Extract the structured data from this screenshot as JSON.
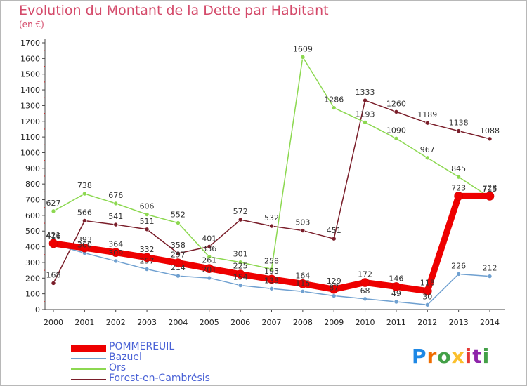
{
  "header": {
    "title": "Evolution du Montant de la Dette par Habitant",
    "unit": "(en €)"
  },
  "logo": {
    "text": "Proxiti",
    "letters": [
      "P",
      "r",
      "o",
      "x",
      "i",
      "t",
      "i"
    ],
    "colors": [
      "#1e88e5",
      "#ef6c00",
      "#43a047",
      "#fbc02d",
      "#e53935",
      "#8e24aa",
      "#43a047"
    ]
  },
  "chart_data": {
    "type": "line",
    "title": "Evolution du Montant de la Dette par Habitant",
    "subtitle": "(en €)",
    "xlabel": "",
    "ylabel": "",
    "x": [
      2000,
      2001,
      2002,
      2003,
      2004,
      2005,
      2006,
      2007,
      2008,
      2009,
      2010,
      2011,
      2012,
      2013,
      2014
    ],
    "ylim": [
      0,
      1700
    ],
    "yticks": [
      0,
      100,
      200,
      300,
      400,
      500,
      600,
      700,
      800,
      900,
      1000,
      1100,
      1200,
      1300,
      1400,
      1500,
      1600,
      1700
    ],
    "grid": false,
    "legend_position": "bottom-left",
    "series": [
      {
        "name": "POMMEREUIL",
        "color": "#ee0000",
        "width": 9,
        "values": [
          421,
          393,
          364,
          332,
          297,
          261,
          225,
          193,
          164,
          129,
          172,
          146,
          118,
          723,
          723
        ]
      },
      {
        "name": "Bazuel",
        "color": "#6fa0d0",
        "width": 1.5,
        "values": [
          416,
          360,
          309,
          257,
          214,
          201,
          154,
          133,
          115,
          87,
          68,
          49,
          30,
          226,
          212
        ]
      },
      {
        "name": "Ors",
        "color": "#8cd850",
        "width": 1.5,
        "values": [
          627,
          738,
          676,
          606,
          552,
          336,
          301,
          258,
          1609,
          1286,
          1193,
          1090,
          967,
          845,
          715
        ]
      },
      {
        "name": "Forest-en-Cambrésis",
        "color": "#7a1e2a",
        "width": 1.5,
        "values": [
          168,
          566,
          541,
          511,
          358,
          401,
          572,
          532,
          503,
          451,
          1333,
          1260,
          1189,
          1138,
          1088
        ]
      }
    ]
  }
}
